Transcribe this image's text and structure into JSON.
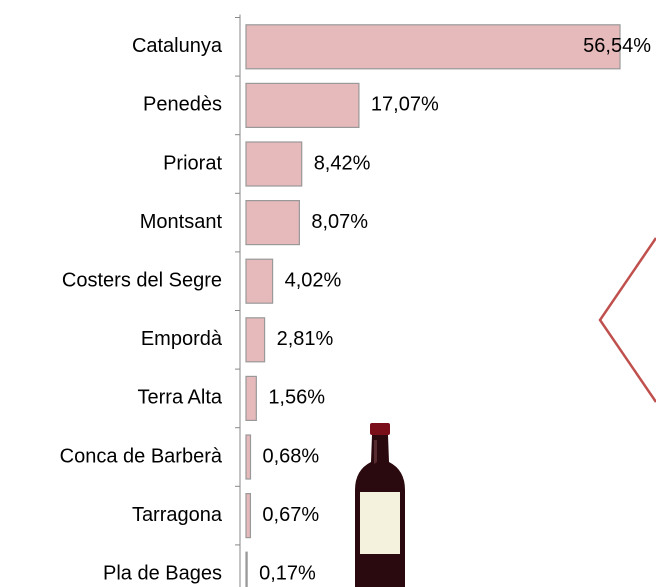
{
  "chart_data": {
    "type": "bar",
    "orientation": "horizontal",
    "categories": [
      "Catalunya",
      "Penedès",
      "Priorat",
      "Montsant",
      "Costers del Segre",
      "Empordà",
      "Terra Alta",
      "Conca de Barberà",
      "Tarragona",
      "Pla de Bages"
    ],
    "values": [
      56.54,
      17.07,
      8.42,
      8.07,
      4.02,
      2.81,
      1.56,
      0.68,
      0.67,
      0.17
    ],
    "value_labels": [
      "56,54%",
      "17,07%",
      "8,42%",
      "8,07%",
      "4,02%",
      "2,81%",
      "1,56%",
      "0,68%",
      "0,67%",
      "0,17%"
    ],
    "color": "#e6b9bb"
  }
}
